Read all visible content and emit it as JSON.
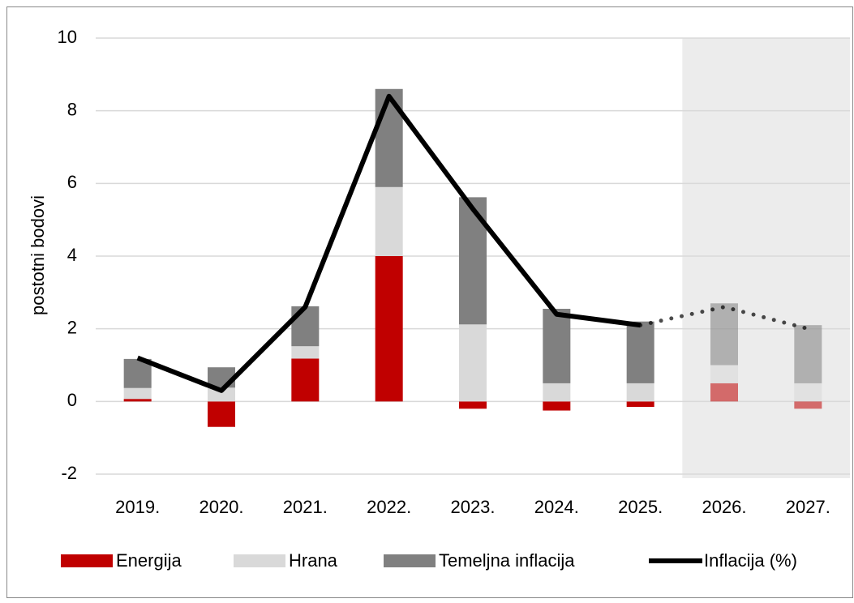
{
  "chart_data": {
    "type": "stacked_bar_line",
    "y_label": "postotni bodovi",
    "categories": [
      "2019.",
      "2020.",
      "2021.",
      "2022.",
      "2023.",
      "2024.",
      "2025.",
      "2026.",
      "2027."
    ],
    "series": [
      {
        "name": "Energija",
        "color": "#c00000",
        "values": [
          0.07,
          -0.7,
          1.18,
          4.0,
          -0.2,
          -0.25,
          -0.15,
          0.5,
          -0.2
        ]
      },
      {
        "name": "Hrana",
        "color": "#d9d9d9",
        "values": [
          0.3,
          0.38,
          0.34,
          1.9,
          2.12,
          0.5,
          0.5,
          0.5,
          0.5
        ]
      },
      {
        "name": "Temeljna inflacija",
        "color": "#808080",
        "values": [
          0.8,
          0.56,
          1.1,
          2.7,
          3.5,
          2.05,
          1.7,
          1.7,
          1.6
        ]
      },
      {
        "name": "Inflacija (%)",
        "color": "#000000",
        "type": "line",
        "values": [
          1.2,
          0.3,
          2.6,
          8.4,
          5.3,
          2.4,
          2.1,
          2.6,
          2.0
        ]
      }
    ],
    "forecast_from_index": 7,
    "ylim": [
      -2,
      10
    ],
    "yticks": [
      -2,
      0,
      2,
      4,
      6,
      8,
      10
    ],
    "grid": true,
    "legend": "bottom"
  }
}
